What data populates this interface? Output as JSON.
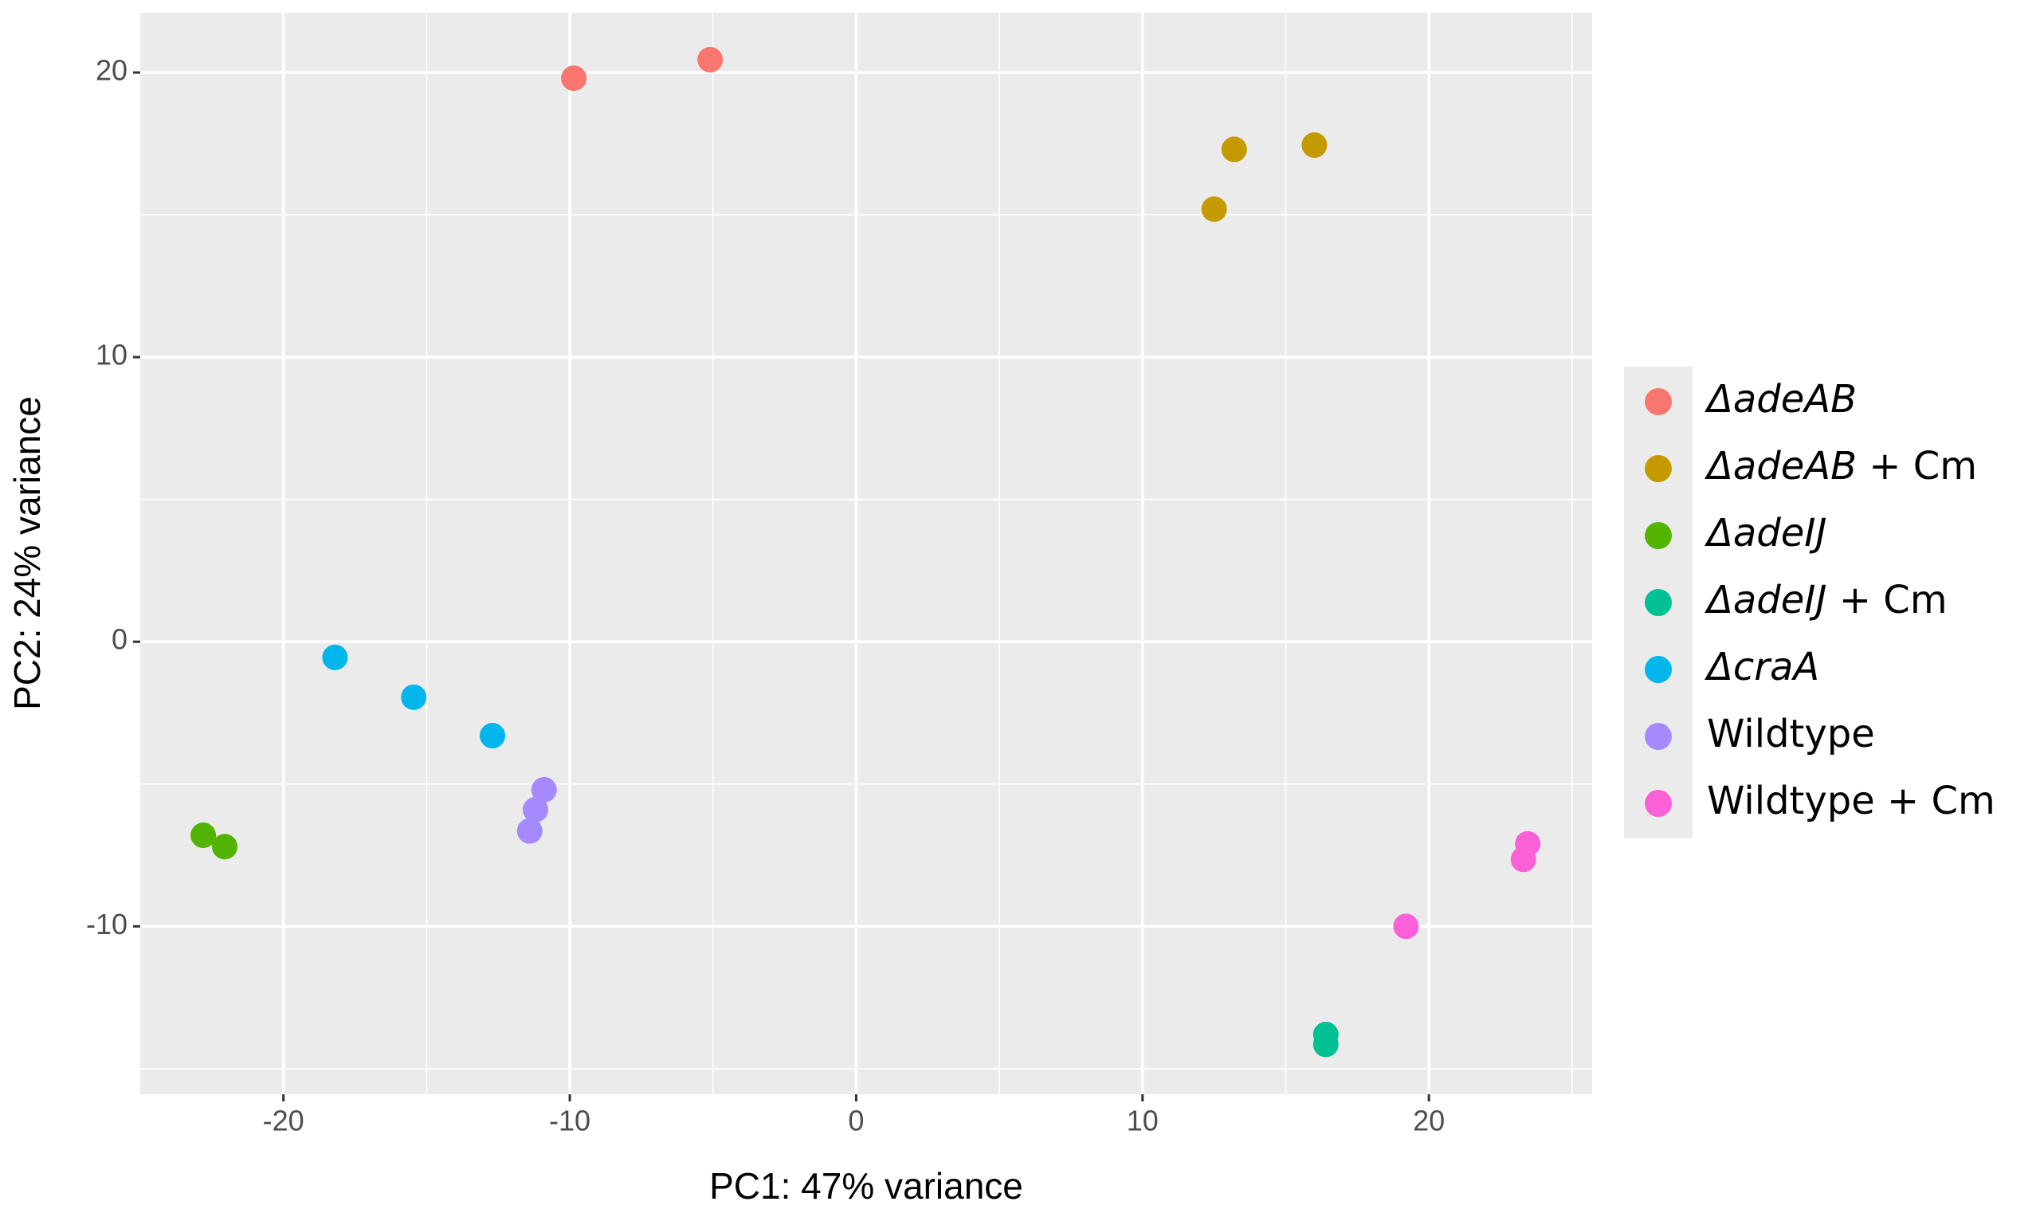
{
  "chart_data": {
    "type": "scatter",
    "x_label": "PC1: 47% variance",
    "y_label": "PC2: 24% variance",
    "xlim": [
      -25,
      25.7
    ],
    "ylim": [
      -15.9,
      22.1
    ],
    "xticks": [
      -20,
      -10,
      0,
      10,
      20
    ],
    "yticks": [
      -10,
      0,
      10,
      20
    ],
    "xminorticks": [
      -15,
      -5,
      5,
      15,
      25
    ],
    "yminorticks": [
      -15,
      -5,
      5,
      15
    ],
    "grid": true,
    "legend_position": "right",
    "series": [
      {
        "name": "ΔadeAB",
        "color": "#F8766D",
        "x": [
          -9.86,
          -5.1
        ],
        "values": [
          19.8,
          20.45
        ]
      },
      {
        "name": "ΔadeAB + Cm",
        "color": "#C49A00",
        "x": [
          13.2,
          16.0,
          12.5
        ],
        "values": [
          17.3,
          17.45,
          15.2
        ]
      },
      {
        "name": "ΔadeIJ",
        "color": "#53B400",
        "x": [
          -22.8,
          -22.05
        ],
        "values": [
          -6.8,
          -7.2
        ]
      },
      {
        "name": "ΔadeIJ + Cm",
        "color": "#00C094",
        "x": [
          16.4,
          16.4
        ],
        "values": [
          -13.8,
          -14.15
        ]
      },
      {
        "name": "ΔcraA",
        "color": "#00B6EB",
        "x": [
          -18.2,
          -15.45,
          -12.7
        ],
        "values": [
          -0.55,
          -1.95,
          -3.3
        ]
      },
      {
        "name": "Wildtype",
        "color": "#A58AFF",
        "x": [
          -10.9,
          -11.2,
          -11.4
        ],
        "values": [
          -5.2,
          -5.9,
          -6.65
        ]
      },
      {
        "name": "Wildtype + Cm",
        "color": "#FB61D7",
        "x": [
          23.45,
          23.3,
          19.2
        ],
        "values": [
          -7.1,
          -7.65,
          -10.0
        ]
      }
    ]
  }
}
